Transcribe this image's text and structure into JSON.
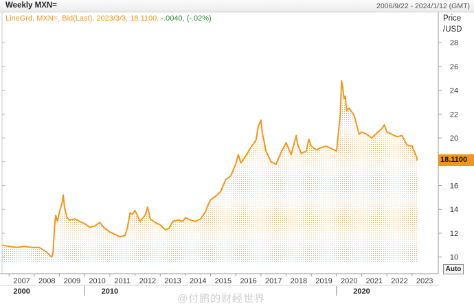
{
  "header": {
    "title": "Weekly MXN=",
    "range": "2006/9/22 - 2024/1/12 (GMT)"
  },
  "legend": {
    "main": "LineGrd, MXN=, Bid(Last), 2023/3/3, 18.1100,",
    "change": "-.0040, (-.02%)"
  },
  "axis": {
    "unit_line1": "Price",
    "unit_line2": "/USD",
    "auto_label": "Auto",
    "decades": [
      "2000",
      "2010",
      "2020"
    ]
  },
  "last_value": "18.1100",
  "watermark": "@付鹏的财经世界",
  "colors": {
    "line": "#f0961e",
    "fill_dots": "#f3b060",
    "change": "#2e8b2e",
    "grid": "#dddddd"
  },
  "chart_data": {
    "type": "area",
    "title": "Weekly MXN=",
    "xlabel": "",
    "ylabel": "Price /USD",
    "ylim": [
      8.6,
      30.6
    ],
    "y_ticks": [
      10,
      12,
      14,
      16,
      18,
      20,
      22,
      24,
      26,
      28
    ],
    "x_ticks": [
      "2007",
      "2008",
      "2009",
      "2010",
      "2011",
      "2012",
      "2013",
      "2014",
      "2015",
      "2016",
      "2017",
      "2018",
      "2019",
      "2020",
      "2021",
      "2022",
      "2023"
    ],
    "xlim": [
      2006.72,
      2024.04
    ],
    "grid": false,
    "legend": "top-left",
    "series": [
      {
        "name": "MXN=",
        "x": [
          2006.72,
          2007.0,
          2007.3,
          2007.6,
          2007.9,
          2008.2,
          2008.5,
          2008.63,
          2008.7,
          2008.75,
          2008.8,
          2008.85,
          2008.92,
          2009.0,
          2009.1,
          2009.15,
          2009.2,
          2009.3,
          2009.4,
          2009.6,
          2009.8,
          2010.0,
          2010.2,
          2010.4,
          2010.6,
          2010.8,
          2011.0,
          2011.2,
          2011.4,
          2011.6,
          2011.7,
          2011.8,
          2011.9,
          2012.0,
          2012.2,
          2012.4,
          2012.5,
          2012.6,
          2012.8,
          2013.0,
          2013.2,
          2013.35,
          2013.5,
          2013.7,
          2013.9,
          2014.0,
          2014.2,
          2014.4,
          2014.6,
          2014.8,
          2014.9,
          2015.0,
          2015.2,
          2015.4,
          2015.6,
          2015.8,
          2016.0,
          2016.1,
          2016.2,
          2016.4,
          2016.6,
          2016.8,
          2016.9,
          2017.0,
          2017.05,
          2017.2,
          2017.4,
          2017.6,
          2017.8,
          2018.0,
          2018.2,
          2018.4,
          2018.45,
          2018.6,
          2018.8,
          2018.9,
          2019.0,
          2019.2,
          2019.4,
          2019.6,
          2019.8,
          2020.0,
          2020.15,
          2020.2,
          2020.25,
          2020.3,
          2020.35,
          2020.4,
          2020.5,
          2020.7,
          2020.9,
          2021.0,
          2021.2,
          2021.4,
          2021.6,
          2021.8,
          2021.9,
          2022.0,
          2022.2,
          2022.4,
          2022.6,
          2022.8,
          2023.0,
          2023.1,
          2023.18,
          2023.2
        ],
        "values": [
          11.0,
          10.9,
          10.8,
          10.9,
          10.8,
          10.8,
          10.4,
          10.1,
          10.0,
          10.5,
          12.5,
          13.5,
          13.0,
          13.8,
          14.5,
          15.2,
          14.2,
          13.3,
          13.1,
          13.2,
          13.0,
          12.8,
          12.5,
          12.6,
          12.9,
          12.4,
          12.1,
          11.9,
          11.7,
          11.8,
          12.5,
          13.7,
          13.6,
          13.9,
          13.0,
          13.5,
          14.2,
          13.2,
          12.9,
          12.7,
          12.3,
          12.4,
          13.0,
          13.1,
          13.0,
          13.3,
          13.1,
          13.0,
          13.2,
          13.8,
          14.4,
          14.8,
          15.1,
          15.5,
          16.5,
          16.8,
          17.8,
          18.6,
          17.9,
          18.5,
          19.2,
          19.8,
          21.0,
          21.5,
          20.5,
          18.9,
          18.0,
          17.8,
          18.8,
          19.6,
          18.6,
          20.2,
          19.5,
          18.7,
          18.9,
          19.9,
          19.3,
          19.0,
          19.2,
          19.3,
          19.1,
          18.9,
          22.0,
          24.8,
          24.2,
          23.3,
          23.5,
          22.3,
          22.5,
          21.9,
          20.3,
          20.5,
          20.3,
          20.0,
          20.4,
          20.8,
          21.1,
          20.5,
          20.3,
          20.1,
          20.2,
          19.4,
          19.3,
          18.8,
          18.4,
          18.11
        ]
      }
    ]
  }
}
